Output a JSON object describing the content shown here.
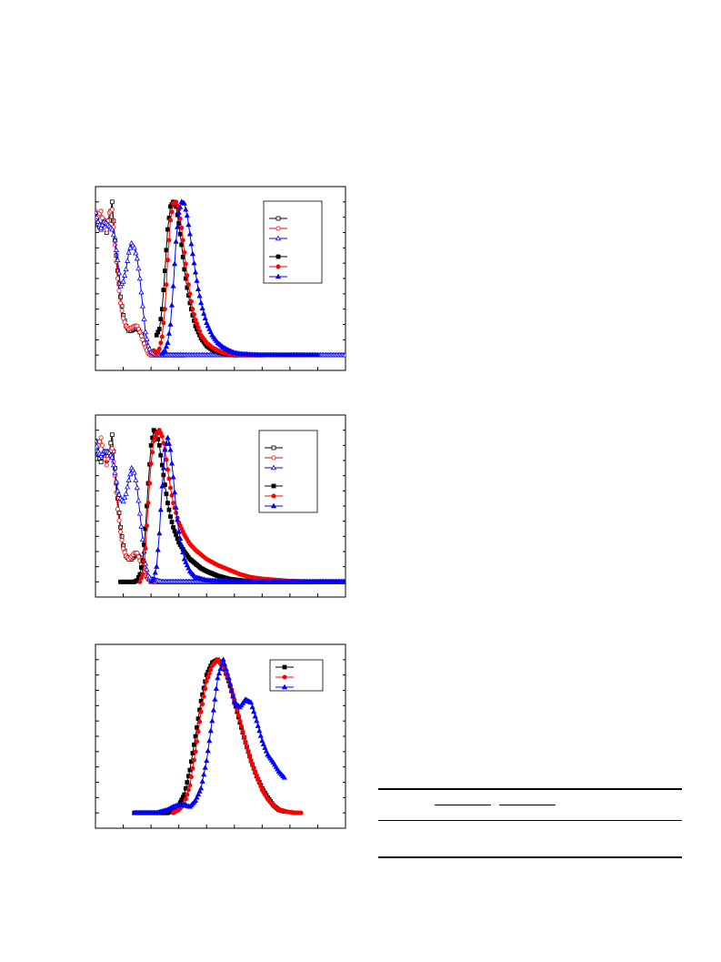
{
  "chart_data": [
    {
      "type": "line",
      "title": "",
      "xlabel": "",
      "ylabel": "",
      "xlim": [
        300,
        750
      ],
      "ylim": [
        -0.1,
        1.1
      ],
      "legend": "top-right",
      "series": [
        {
          "color": "#000000",
          "marker": "square-open",
          "x": [
            300,
            305,
            310,
            315,
            320,
            325,
            330,
            335,
            340,
            345,
            350,
            355,
            360,
            365,
            370,
            375,
            380,
            385,
            390,
            395,
            400,
            405,
            410,
            420,
            430,
            440,
            450,
            460
          ],
          "y": [
            0.93,
            0.85,
            0.82,
            0.88,
            0.8,
            0.88,
            1.0,
            0.75,
            0.55,
            0.38,
            0.26,
            0.19,
            0.16,
            0.16,
            0.17,
            0.18,
            0.15,
            0.12,
            0.06,
            0.02,
            0.0,
            0.0,
            0.0,
            0.0,
            0.0,
            0.0,
            0.0,
            0.0
          ]
        },
        {
          "color": "#ff0000",
          "marker": "circle-open",
          "x": [
            300,
            305,
            310,
            315,
            320,
            325,
            330,
            335,
            340,
            345,
            350,
            355,
            360,
            365,
            370,
            375,
            380,
            385,
            390,
            395,
            400,
            405,
            410,
            420,
            430,
            440,
            450,
            460
          ],
          "y": [
            0.94,
            0.91,
            0.94,
            0.85,
            0.82,
            0.93,
            0.95,
            0.72,
            0.5,
            0.34,
            0.24,
            0.19,
            0.17,
            0.18,
            0.19,
            0.19,
            0.15,
            0.1,
            0.05,
            0.01,
            0.0,
            0.0,
            0.0,
            0.0,
            0.0,
            0.0,
            0.0,
            0.0
          ]
        },
        {
          "color": "#0000ff",
          "marker": "triangle-open",
          "x": [
            300,
            305,
            310,
            315,
            320,
            325,
            330,
            335,
            340,
            345,
            350,
            355,
            360,
            365,
            370,
            375,
            380,
            385,
            390,
            395,
            400,
            405,
            410,
            420,
            430,
            440,
            450,
            460,
            500,
            600,
            750
          ],
          "y": [
            0.93,
            0.87,
            0.83,
            0.87,
            0.86,
            0.84,
            0.82,
            0.75,
            0.62,
            0.45,
            0.48,
            0.56,
            0.67,
            0.73,
            0.7,
            0.63,
            0.5,
            0.32,
            0.15,
            0.06,
            0.02,
            0.01,
            0.0,
            0.0,
            0.0,
            0.0,
            0.0,
            0.0,
            0.0,
            0.0,
            0.0
          ]
        },
        {
          "color": "#000000",
          "marker": "square",
          "x": [
            410,
            415,
            420,
            425,
            430,
            435,
            440,
            445,
            450,
            455,
            460,
            465,
            470,
            475,
            480,
            490,
            500,
            510,
            520,
            530,
            540,
            550,
            560,
            580,
            600
          ],
          "y": [
            0.13,
            0.17,
            0.3,
            0.55,
            0.82,
            0.97,
            1.0,
            0.97,
            0.86,
            0.72,
            0.56,
            0.44,
            0.34,
            0.26,
            0.19,
            0.11,
            0.06,
            0.035,
            0.02,
            0.01,
            0.005,
            0.0,
            0.0,
            0.0,
            0.0
          ]
        },
        {
          "color": "#ff0000",
          "marker": "circle",
          "x": [
            405,
            410,
            415,
            420,
            425,
            430,
            435,
            440,
            445,
            450,
            455,
            460,
            465,
            470,
            475,
            480,
            490,
            500,
            510,
            520,
            530,
            540,
            550,
            570,
            600,
            650,
            670
          ],
          "y": [
            0.03,
            0.01,
            0.04,
            0.12,
            0.3,
            0.62,
            0.88,
            0.99,
            1.0,
            0.95,
            0.83,
            0.67,
            0.52,
            0.4,
            0.3,
            0.23,
            0.13,
            0.08,
            0.05,
            0.03,
            0.015,
            0.008,
            0.004,
            0.0,
            0.0,
            0.0,
            0.0
          ]
        },
        {
          "color": "#0000ff",
          "marker": "triangle",
          "x": [
            420,
            425,
            430,
            435,
            440,
            445,
            450,
            455,
            460,
            465,
            470,
            475,
            480,
            485,
            490,
            495,
            500,
            510,
            520,
            530,
            540,
            550,
            560,
            580,
            600,
            650,
            700
          ],
          "y": [
            0.01,
            0.03,
            0.08,
            0.2,
            0.45,
            0.74,
            0.93,
            1.0,
            0.99,
            0.91,
            0.79,
            0.66,
            0.54,
            0.43,
            0.34,
            0.27,
            0.21,
            0.13,
            0.08,
            0.05,
            0.03,
            0.015,
            0.008,
            0.003,
            0.0,
            0.0,
            0.0
          ]
        }
      ]
    },
    {
      "type": "line",
      "title": "",
      "xlabel": "",
      "ylabel": "",
      "xlim": [
        300,
        750
      ],
      "ylim": [
        -0.1,
        1.1
      ],
      "legend": "top-right",
      "series": [
        {
          "color": "#000000",
          "marker": "square-open",
          "x": [
            300,
            305,
            310,
            315,
            320,
            325,
            330,
            335,
            340,
            345,
            350,
            355,
            360,
            365,
            370,
            375,
            380,
            385,
            390,
            395,
            400,
            405,
            410,
            420,
            440,
            460,
            500,
            600,
            750
          ],
          "y": [
            0.93,
            0.84,
            0.79,
            0.85,
            0.8,
            0.86,
            0.97,
            0.75,
            0.55,
            0.36,
            0.24,
            0.17,
            0.15,
            0.15,
            0.17,
            0.18,
            0.16,
            0.1,
            0.05,
            0.02,
            0.01,
            0.0,
            0.0,
            0.0,
            0.0,
            0.0,
            0.0,
            0.0,
            0.0
          ]
        },
        {
          "color": "#ff0000",
          "marker": "circle-open",
          "x": [
            300,
            305,
            310,
            315,
            320,
            325,
            330,
            335,
            340,
            345,
            350,
            355,
            360,
            365,
            370,
            375,
            380,
            385,
            390,
            395,
            400,
            405,
            410,
            420,
            440,
            460,
            500,
            600,
            750
          ],
          "y": [
            0.92,
            0.9,
            0.95,
            0.85,
            0.77,
            0.85,
            0.88,
            0.7,
            0.48,
            0.33,
            0.22,
            0.17,
            0.15,
            0.17,
            0.19,
            0.19,
            0.14,
            0.09,
            0.04,
            0.02,
            0.01,
            0.0,
            0.0,
            0.0,
            0.0,
            0.0,
            0.0,
            0.0,
            0.0
          ]
        },
        {
          "color": "#0000ff",
          "marker": "triangle-open",
          "x": [
            300,
            305,
            310,
            315,
            320,
            325,
            330,
            335,
            340,
            345,
            350,
            355,
            360,
            365,
            370,
            375,
            380,
            385,
            390,
            395,
            400,
            410,
            420,
            440,
            460,
            500,
            600,
            750
          ],
          "y": [
            0.93,
            0.86,
            0.83,
            0.86,
            0.86,
            0.85,
            0.82,
            0.72,
            0.6,
            0.55,
            0.53,
            0.58,
            0.67,
            0.75,
            0.72,
            0.62,
            0.45,
            0.28,
            0.12,
            0.04,
            0.02,
            0.01,
            0.0,
            0.0,
            0.0,
            0.0,
            0.0,
            0.0
          ]
        },
        {
          "color": "#000000",
          "marker": "square",
          "x": [
            345,
            360,
            370,
            375,
            380,
            385,
            390,
            395,
            400,
            405,
            410,
            415,
            420,
            425,
            430,
            435,
            440,
            450,
            460,
            470,
            480,
            490,
            500,
            520,
            540,
            560,
            600,
            650,
            700,
            750
          ],
          "y": [
            0.0,
            0.0,
            0.0,
            0.01,
            0.05,
            0.14,
            0.35,
            0.65,
            0.9,
            1.0,
            0.98,
            0.9,
            0.77,
            0.64,
            0.52,
            0.43,
            0.36,
            0.26,
            0.2,
            0.15,
            0.12,
            0.09,
            0.07,
            0.04,
            0.02,
            0.01,
            0.0,
            0.0,
            0.0,
            0.0
          ]
        },
        {
          "color": "#ff0000",
          "marker": "circle",
          "x": [
            380,
            385,
            390,
            395,
            400,
            405,
            410,
            415,
            420,
            425,
            430,
            435,
            440,
            450,
            460,
            470,
            480,
            490,
            500,
            520,
            540,
            560,
            580,
            600,
            650,
            700,
            750
          ],
          "y": [
            0.0,
            0.05,
            0.22,
            0.52,
            0.78,
            0.93,
            0.98,
            1.0,
            0.96,
            0.87,
            0.74,
            0.62,
            0.52,
            0.39,
            0.31,
            0.25,
            0.21,
            0.18,
            0.15,
            0.11,
            0.08,
            0.05,
            0.03,
            0.02,
            0.005,
            0.0,
            0.0
          ]
        },
        {
          "color": "#0000ff",
          "marker": "triangle",
          "x": [
            400,
            405,
            410,
            415,
            420,
            425,
            430,
            435,
            440,
            445,
            450,
            460,
            470,
            480,
            500,
            550,
            600,
            650,
            700,
            750
          ],
          "y": [
            0.0,
            0.02,
            0.1,
            0.32,
            0.63,
            0.87,
            0.95,
            0.87,
            0.69,
            0.49,
            0.33,
            0.15,
            0.07,
            0.03,
            0.01,
            0.0,
            0.0,
            0.0,
            0.0,
            0.0
          ]
        }
      ]
    },
    {
      "type": "line",
      "title": "",
      "xlabel": "",
      "ylabel": "",
      "xlim": [
        300,
        750
      ],
      "ylim": [
        -0.1,
        1.1
      ],
      "legend": "top-right",
      "series": [
        {
          "color": "#000000",
          "marker": "square",
          "x": [
            370,
            380,
            390,
            400,
            410,
            420,
            430,
            440,
            450,
            460,
            470,
            480,
            490,
            500,
            510,
            520,
            530,
            540,
            550,
            560,
            570,
            580,
            590,
            600,
            610,
            620,
            630,
            640
          ],
          "y": [
            0.0,
            0.0,
            0.0,
            0.0,
            0.0,
            0.0,
            0.0,
            0.02,
            0.05,
            0.12,
            0.28,
            0.5,
            0.73,
            0.9,
            0.98,
            1.0,
            0.96,
            0.86,
            0.73,
            0.59,
            0.46,
            0.34,
            0.24,
            0.16,
            0.1,
            0.05,
            0.02,
            0.01
          ]
        },
        {
          "color": "#ff0000",
          "marker": "circle",
          "x": [
            440,
            450,
            460,
            470,
            480,
            490,
            500,
            510,
            520,
            530,
            540,
            550,
            560,
            570,
            580,
            590,
            600,
            610,
            620,
            630,
            640,
            650,
            660,
            670
          ],
          "y": [
            0.0,
            0.02,
            0.06,
            0.18,
            0.4,
            0.66,
            0.86,
            0.96,
            1.0,
            0.96,
            0.87,
            0.74,
            0.6,
            0.46,
            0.34,
            0.24,
            0.15,
            0.09,
            0.05,
            0.02,
            0.01,
            0.005,
            0.0,
            0.0
          ]
        },
        {
          "color": "#0000ff",
          "marker": "triangle",
          "x": [
            370,
            390,
            410,
            430,
            440,
            450,
            460,
            470,
            480,
            490,
            500,
            510,
            520,
            530,
            540,
            550,
            560,
            570,
            580,
            590,
            600,
            610,
            620,
            630,
            640
          ],
          "y": [
            0.0,
            0.0,
            0.0,
            0.02,
            0.04,
            0.05,
            0.05,
            0.04,
            0.08,
            0.16,
            0.34,
            0.6,
            0.88,
            1.0,
            0.88,
            0.72,
            0.69,
            0.74,
            0.72,
            0.6,
            0.47,
            0.38,
            0.33,
            0.27,
            0.23
          ]
        }
      ]
    }
  ]
}
